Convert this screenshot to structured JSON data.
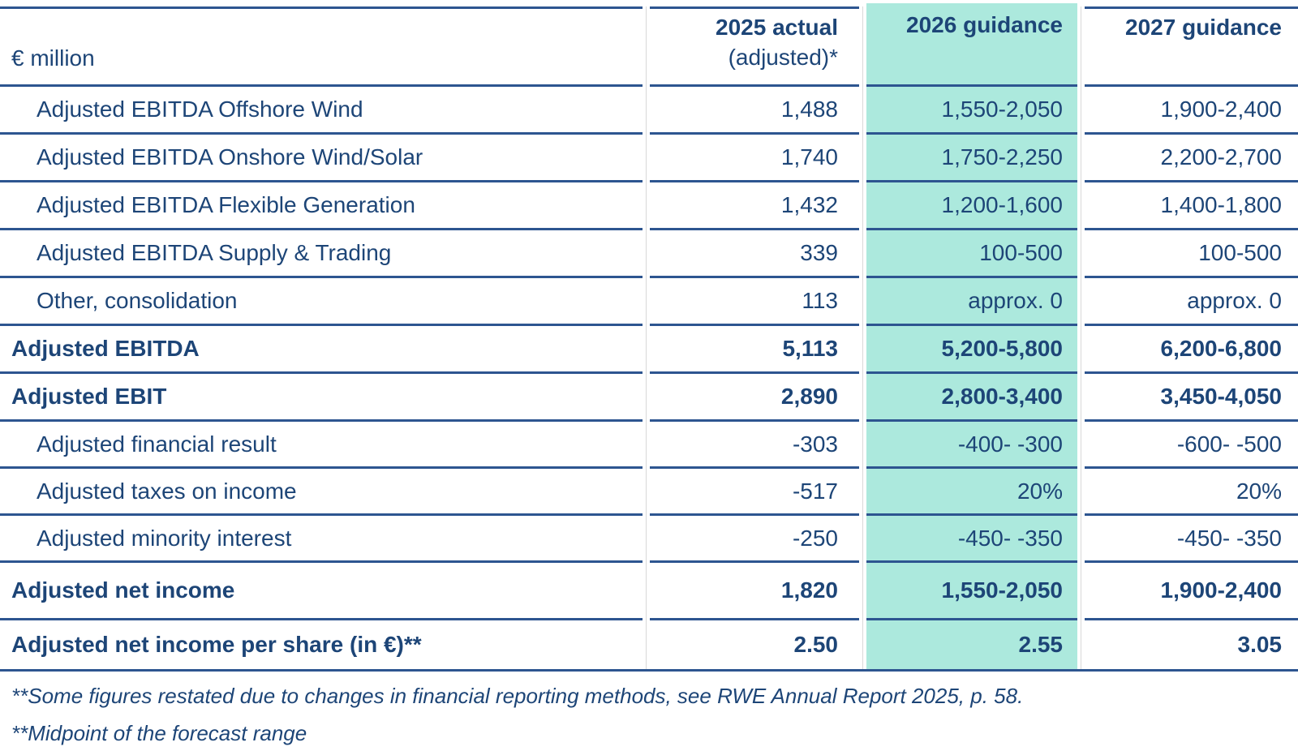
{
  "table": {
    "unit_header": "€ million",
    "columns": {
      "actual": {
        "line1": "2025 actual",
        "line2": "(adjusted)*"
      },
      "g2026": {
        "label": "2026 guidance",
        "highlighted": true
      },
      "g2027": {
        "label": "2027 guidance"
      }
    },
    "rows": [
      {
        "id": "adjusted-ebitda-offshore-wind",
        "label": "Adjusted EBITDA Offshore Wind",
        "indent": true,
        "bold": false,
        "actual": "1,488",
        "g2026": "1,550-2,050",
        "g2027": "1,900-2,400"
      },
      {
        "id": "adjusted-ebitda-onshore-wind-solar",
        "label": "Adjusted EBITDA Onshore Wind/Solar",
        "indent": true,
        "bold": false,
        "actual": "1,740",
        "g2026": "1,750-2,250",
        "g2027": "2,200-2,700"
      },
      {
        "id": "adjusted-ebitda-flexible-generation",
        "label": "Adjusted EBITDA Flexible Generation",
        "indent": true,
        "bold": false,
        "actual": "1,432",
        "g2026": "1,200-1,600",
        "g2027": "1,400-1,800"
      },
      {
        "id": "adjusted-ebitda-supply-trading",
        "label": "Adjusted EBITDA Supply & Trading",
        "indent": true,
        "bold": false,
        "actual": "339",
        "g2026": "100-500",
        "g2027": "100-500"
      },
      {
        "id": "other-consolidation",
        "label": "Other, consolidation",
        "indent": true,
        "bold": false,
        "actual": "113",
        "g2026": "approx. 0",
        "g2027": "approx. 0"
      },
      {
        "id": "adjusted-ebitda",
        "label": "Adjusted EBITDA",
        "indent": false,
        "bold": true,
        "actual": "5,113",
        "g2026": "5,200-5,800",
        "g2027": "6,200-6,800"
      },
      {
        "id": "adjusted-ebit",
        "label": "Adjusted EBIT",
        "indent": false,
        "bold": true,
        "actual": "2,890",
        "g2026": "2,800-3,400",
        "g2027": "3,450-4,050"
      },
      {
        "id": "adjusted-financial-result",
        "label": "Adjusted financial result",
        "indent": true,
        "bold": false,
        "actual": "-303",
        "g2026": "-400- -300",
        "g2027": "-600- -500"
      },
      {
        "id": "adjusted-taxes-on-income",
        "label": "Adjusted taxes on income",
        "indent": true,
        "bold": false,
        "actual": "-517",
        "g2026": "20%",
        "g2027": "20%"
      },
      {
        "id": "adjusted-minority-interest",
        "label": "Adjusted minority interest",
        "indent": true,
        "bold": false,
        "actual": "-250",
        "g2026": "-450- -350",
        "g2027": "-450- -350"
      },
      {
        "id": "adjusted-net-income",
        "label": "Adjusted net income",
        "indent": false,
        "bold": true,
        "actual": "1,820",
        "g2026": "1,550-2,050",
        "g2027": "1,900-2,400"
      },
      {
        "id": "adjusted-net-income-per-share",
        "label": "Adjusted net income per share (in €)**",
        "indent": false,
        "bold": true,
        "actual": "2.50",
        "g2026": "2.55",
        "g2027": "3.05"
      }
    ]
  },
  "footnotes": [
    "**Some figures restated due to changes in financial reporting methods, see RWE Annual Report 2025, p. 58.",
    "**Midpoint of the forecast range"
  ],
  "colors": {
    "navy_text": "#1d4577",
    "rule_navy": "#2d5590",
    "highlight_teal": "#ace9dd",
    "separator_gray": "#d9d9d9",
    "background": "#ffffff"
  }
}
